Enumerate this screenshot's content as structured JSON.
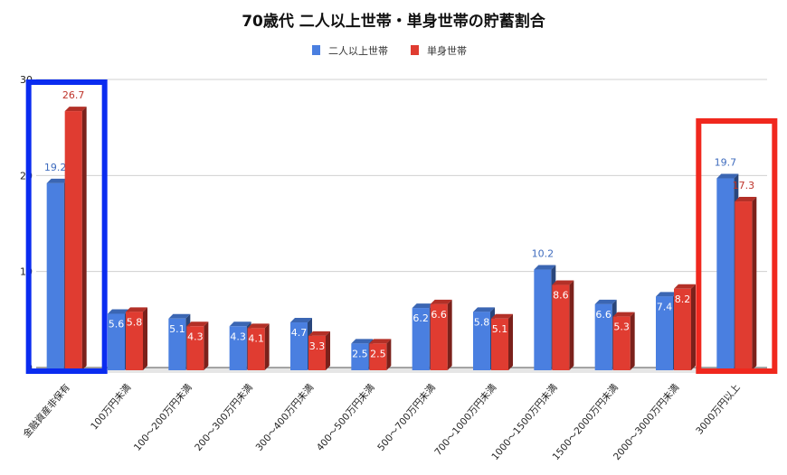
{
  "chart_data": {
    "type": "bar",
    "title": "70歳代 二人以上世帯・単身世帯の貯蓄割合",
    "categories": [
      "金融資産非保有",
      "100万円未満",
      "100～200万円未満",
      "200～300万円未満",
      "300～400万円未満",
      "400～500万円未満",
      "500～700万円未満",
      "700～1000万円未満",
      "1000～1500万円未満",
      "1500～2000万円未満",
      "2000～3000万円未満",
      "3000万円以上"
    ],
    "series": [
      {
        "name": "二人以上世帯",
        "color": "#4a7fe0",
        "values": [
          19.2,
          5.6,
          5.1,
          4.3,
          4.7,
          2.5,
          6.2,
          5.8,
          10.2,
          6.6,
          7.4,
          19.7
        ]
      },
      {
        "name": "単身世帯",
        "color": "#e03c31",
        "values": [
          26.7,
          5.8,
          4.3,
          4.1,
          3.3,
          2.5,
          6.6,
          5.1,
          8.6,
          5.3,
          8.2,
          17.3
        ]
      }
    ],
    "ylim": [
      0,
      30
    ],
    "yticks": [
      0,
      10,
      20,
      30
    ],
    "grid": true,
    "legend_position": "top",
    "style": "3d-bar",
    "highlights": [
      {
        "category": "金融資産非保有",
        "color": "#0a2cf0"
      },
      {
        "category": "3000万円以上",
        "color": "#f0281e"
      }
    ]
  }
}
